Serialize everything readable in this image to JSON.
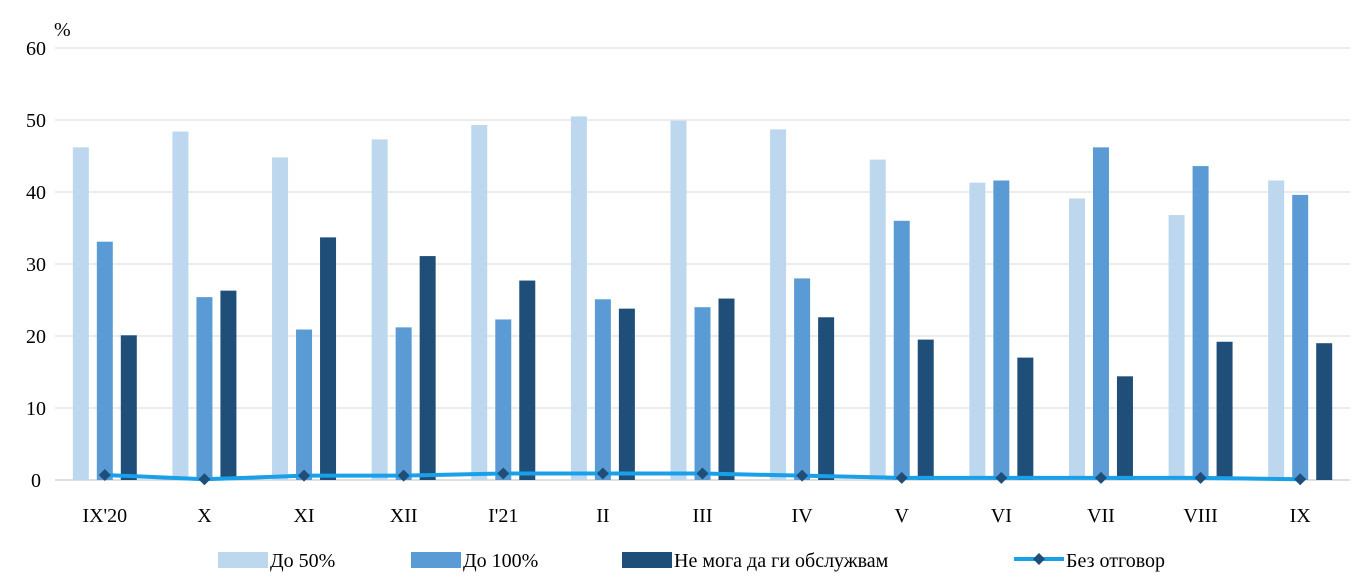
{
  "chart_data": {
    "type": "bar",
    "unit_label": "%",
    "ylim": [
      0,
      60
    ],
    "yticks": [
      0,
      10,
      20,
      30,
      40,
      50,
      60
    ],
    "grid": true,
    "legend_position": "bottom",
    "categories": [
      "IX'20",
      "X",
      "XI",
      "XII",
      "I'21",
      "II",
      "III",
      "IV",
      "V",
      "VI",
      "VII",
      "VIII",
      "IX"
    ],
    "series": [
      {
        "name": "До 50%",
        "kind": "bar",
        "color": "#bdd7ee",
        "values": [
          46.2,
          48.4,
          44.8,
          47.3,
          49.3,
          50.5,
          49.9,
          48.7,
          44.5,
          41.3,
          39.1,
          36.8,
          41.6
        ]
      },
      {
        "name": "До 100%",
        "kind": "bar",
        "color": "#5b9bd5",
        "values": [
          33.1,
          25.4,
          20.9,
          21.2,
          22.3,
          25.1,
          24.0,
          28.0,
          36.0,
          41.6,
          46.2,
          43.6,
          39.6
        ]
      },
      {
        "name": "Не мога да ги обслужвам",
        "kind": "bar",
        "color": "#1f4e79",
        "values": [
          20.1,
          26.3,
          33.7,
          31.1,
          27.7,
          23.8,
          25.2,
          22.6,
          19.5,
          17.0,
          14.4,
          19.2,
          19.0
        ]
      },
      {
        "name": "Без отговор",
        "kind": "line",
        "color": "#1aa0e8",
        "marker_color": "#1f4e79",
        "values": [
          0.7,
          0.1,
          0.6,
          0.6,
          0.9,
          0.9,
          0.9,
          0.6,
          0.3,
          0.3,
          0.3,
          0.3,
          0.1
        ]
      }
    ]
  }
}
